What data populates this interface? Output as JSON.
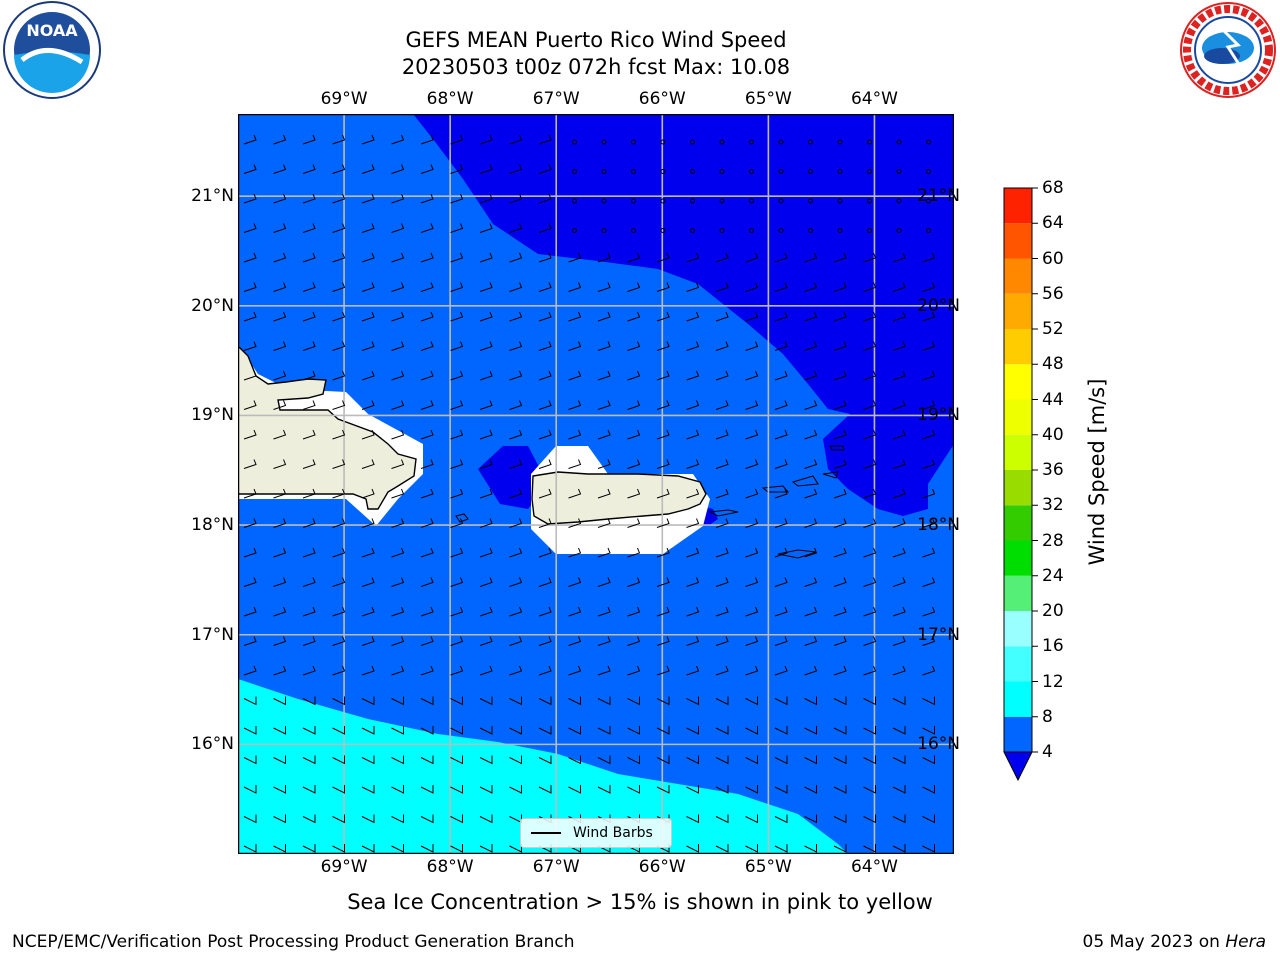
{
  "title": {
    "line1": "GEFS MEAN Puerto Rico Wind Speed",
    "line2": "20230503 t00z 072h fcst   Max: 10.08"
  },
  "map": {
    "lon_labels": [
      "69°W",
      "68°W",
      "67°W",
      "66°W",
      "65°W",
      "64°W"
    ],
    "lat_labels": [
      "21°N",
      "20°N",
      "19°N",
      "18°N",
      "17°N",
      "16°N"
    ],
    "lon_range": [
      -70.0,
      -63.25
    ],
    "lat_range": [
      15.0,
      21.75
    ],
    "legend_label": "Wind Barbs",
    "colors": {
      "calm": "#0000ee",
      "band_4_8": "#0066ff",
      "band_8_12": "#00ffff",
      "land": "#eeeedd",
      "grid": "#bbbbbb"
    }
  },
  "colorbar": {
    "title": "Wind Speed [m/s]",
    "ticks": [
      "4",
      "8",
      "12",
      "16",
      "20",
      "24",
      "28",
      "32",
      "36",
      "40",
      "44",
      "48",
      "52",
      "56",
      "60",
      "64",
      "68"
    ],
    "colors": [
      "#0066ff",
      "#00ffff",
      "#44ffff",
      "#99ffff",
      "#55ee77",
      "#00dd00",
      "#33cc00",
      "#99dd00",
      "#ccff00",
      "#eeff00",
      "#ffff00",
      "#ffcc00",
      "#ffaa00",
      "#ff8800",
      "#ff5500",
      "#ff2200",
      "#ff0000"
    ],
    "under_color": "#0000ee"
  },
  "note": "Sea Ice Concentration > 15% is shown in pink to yellow",
  "footer": {
    "left": "NCEP/EMC/Verification Post Processing Product Generation Branch",
    "right_date": "05 May 2023 on",
    "right_host": "Hera"
  },
  "logos": {
    "noaa_text": "NOAA",
    "nws_text": "NATIONAL WEATHER SERVICE"
  }
}
